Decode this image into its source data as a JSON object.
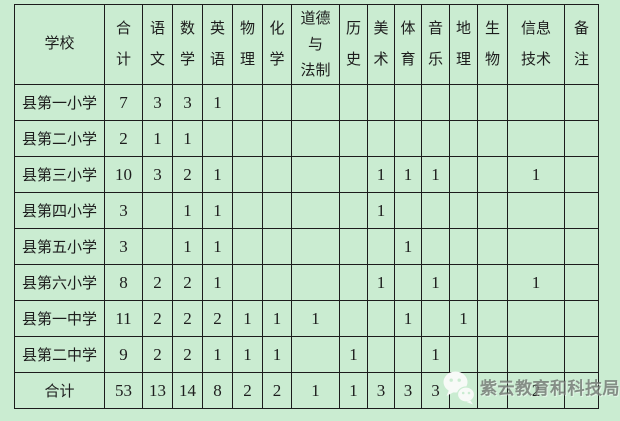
{
  "page": {
    "background_color": "#caecd1",
    "border_color": "#1c1c1c",
    "text_color": "#1d1d1d"
  },
  "table": {
    "header": {
      "school": "学校",
      "columns": [
        "合\n计",
        "语\n文",
        "数\n学",
        "英\n语",
        "物\n理",
        "化\n学",
        "道德\n与\n法制",
        "历\n史",
        "美\n术",
        "体\n育",
        "音\n乐",
        "地\n理",
        "生\n物",
        "信息\n技术",
        "备\n注"
      ]
    },
    "rows": [
      {
        "school": "县第一小学",
        "values": [
          "7",
          "3",
          "3",
          "1",
          "",
          "",
          "",
          "",
          "",
          "",
          "",
          "",
          "",
          "",
          ""
        ]
      },
      {
        "school": "县第二小学",
        "values": [
          "2",
          "1",
          "1",
          "",
          "",
          "",
          "",
          "",
          "",
          "",
          "",
          "",
          "",
          "",
          ""
        ]
      },
      {
        "school": "县第三小学",
        "values": [
          "10",
          "3",
          "2",
          "1",
          "",
          "",
          "",
          "",
          "1",
          "1",
          "1",
          "",
          "",
          "1",
          ""
        ]
      },
      {
        "school": "县第四小学",
        "values": [
          "3",
          "",
          "1",
          "1",
          "",
          "",
          "",
          "",
          "1",
          "",
          "",
          "",
          "",
          "",
          ""
        ]
      },
      {
        "school": "县第五小学",
        "values": [
          "3",
          "",
          "1",
          "1",
          "",
          "",
          "",
          "",
          "",
          "1",
          "",
          "",
          "",
          "",
          ""
        ]
      },
      {
        "school": "县第六小学",
        "values": [
          "8",
          "2",
          "2",
          "1",
          "",
          "",
          "",
          "",
          "1",
          "",
          "1",
          "",
          "",
          "1",
          ""
        ]
      },
      {
        "school": "县第一中学",
        "values": [
          "11",
          "2",
          "2",
          "2",
          "1",
          "1",
          "1",
          "",
          "",
          "1",
          "",
          "1",
          "",
          "",
          ""
        ]
      },
      {
        "school": "县第二中学",
        "values": [
          "9",
          "2",
          "2",
          "1",
          "1",
          "1",
          "",
          "1",
          "",
          "",
          "1",
          "",
          "",
          "",
          ""
        ]
      },
      {
        "school": "合计",
        "values": [
          "53",
          "13",
          "14",
          "8",
          "2",
          "2",
          "1",
          "1",
          "3",
          "3",
          "3",
          "1",
          "",
          "2",
          ""
        ]
      }
    ]
  },
  "watermark": {
    "text": "紫云教育和科技局",
    "icon": "wechat-icon"
  }
}
